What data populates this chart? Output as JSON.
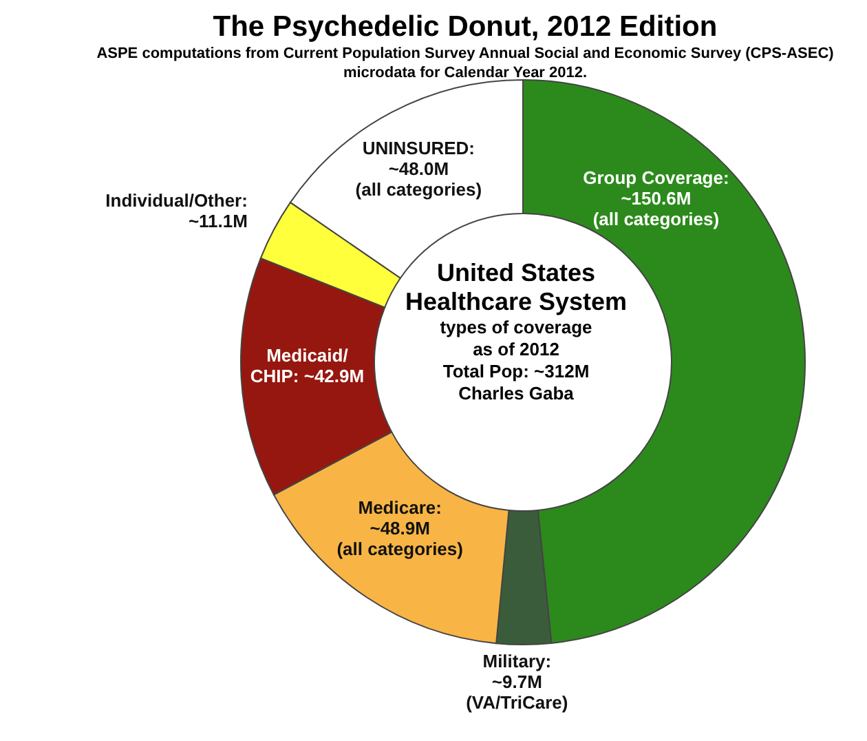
{
  "chart_data": {
    "type": "donut",
    "title": "The Psychedelic Donut, 2012 Edition",
    "subtitle": "ASPE computations from Current Population Survey Annual Social and Economic Survey (CPS-ASEC) microdata for Calendar Year 2012.",
    "categories": [
      "Group Coverage: ~150.6M (all categories)",
      "Military: ~9.7M (VA/TriCare)",
      "Medicare: ~48.9M (all categories)",
      "Medicaid/ CHIP: ~42.9M",
      "Individual/Other: ~11.1M",
      "UNINSURED: ~48.0M (all categories)"
    ],
    "values": [
      150.6,
      9.7,
      48.9,
      42.9,
      11.1,
      48.0
    ],
    "colors": [
      "#2c8a1c",
      "#3a5c3a",
      "#f8b545",
      "#96170f",
      "#ffff3c",
      "#ffffff"
    ],
    "annotations": [
      "United States Healthcare System",
      "types of coverage as of 2012",
      "Total Pop: ~312M",
      "Charles Gaba"
    ],
    "legend": false
  }
}
